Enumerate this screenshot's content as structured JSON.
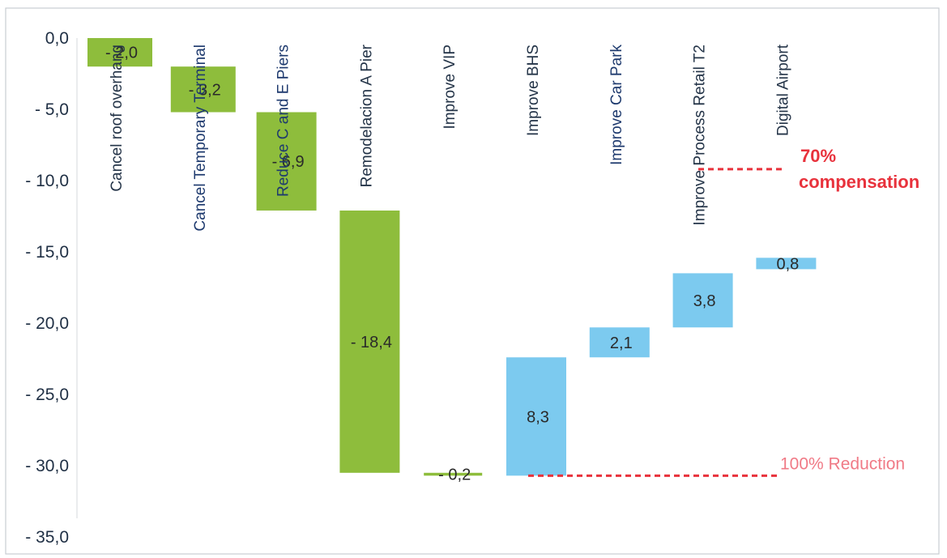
{
  "chart_data": {
    "type": "bar",
    "subtype": "waterfall",
    "title": "",
    "xlabel": "",
    "ylabel": "",
    "ylim": [
      -35,
      0
    ],
    "y_ticks": [
      "0,0",
      "- 5,0",
      "- 10,0",
      "- 15,0",
      "- 20,0",
      "- 25,0",
      "- 30,0",
      "- 35,0"
    ],
    "grid": false,
    "legend": "none",
    "categories": [
      "Cancel roof overhang",
      "Cancel Temporary Terminal",
      "Reduce C and E Piers",
      "Remodelacion A Pier",
      "Improve VIP",
      "Improve BHS",
      "Improve Car Park",
      "Improve Process Retail T2",
      "Digital Airport"
    ],
    "values": [
      -2.0,
      -3.2,
      -6.9,
      -18.4,
      -0.2,
      8.3,
      2.1,
      3.8,
      0.8
    ],
    "value_labels": [
      "- 2,0",
      "- 3,2",
      "- 6,9",
      "- 18,4",
      "- 0,2",
      "8,3",
      "2,1",
      "3,8",
      "0,8"
    ],
    "colors": {
      "reduction": "#8ebd3c",
      "improvement": "#7ccaef",
      "reference_line": "#e8323c"
    },
    "reference_lines": [
      {
        "label": "70% compensation",
        "label_lines": [
          "70%",
          "compensation"
        ],
        "value": -9.2
      },
      {
        "label": "100% Reduction",
        "value": -30.7
      }
    ]
  }
}
